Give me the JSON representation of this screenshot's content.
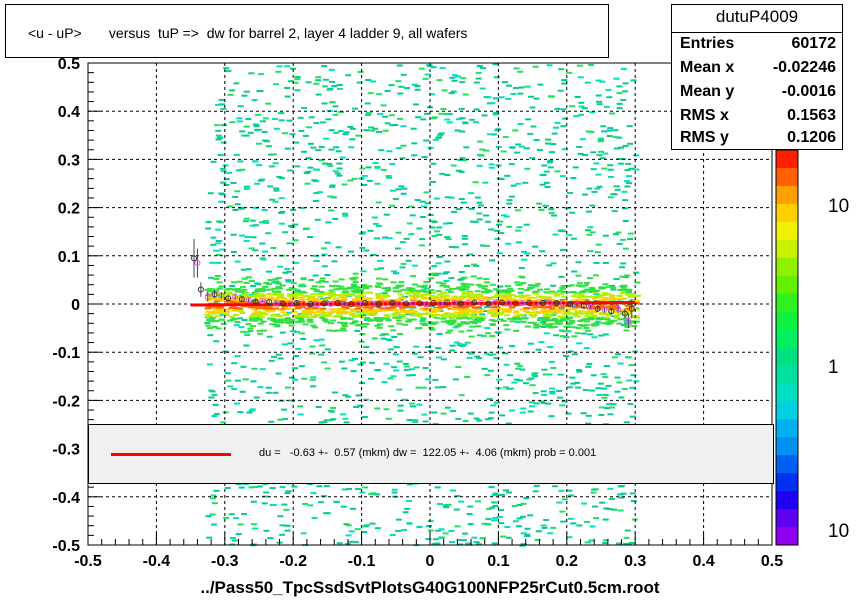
{
  "header": {
    "title": "<u - uP>       versus  tuP =>  dw for barrel 2, layer 4 ladder 9, all wafers"
  },
  "stats": {
    "name": "dutuP4009",
    "rows": [
      {
        "label": "Entries",
        "value": "60172"
      },
      {
        "label": "Mean x",
        "value": "-0.02246"
      },
      {
        "label": "Mean y",
        "value": "-0.0016"
      },
      {
        "label": "RMS x",
        "value": "0.1563"
      },
      {
        "label": "RMS y",
        "value": "0.1206"
      }
    ]
  },
  "fit": {
    "text": "du =   -0.63 +-  0.57 (mkm) dw =  122.05 +-  4.06 (mkm) prob = 0.001",
    "line_color": "#ff0000"
  },
  "chart_data": {
    "type": "heatmap",
    "title": "<u - uP>       versus  tuP =>  dw for barrel 2, layer 4 ladder 9, all wafers",
    "xlabel": "../Pass50_TpcSsdSvtPlotsG40G100NFP25rCut0.5cm.root",
    "ylabel": "",
    "xlim": [
      -0.5,
      0.5
    ],
    "ylim": [
      -0.5,
      0.5
    ],
    "x_ticks": [
      "-0.5",
      "-0.4",
      "-0.3",
      "-0.2",
      "-0.1",
      "0",
      "0.1",
      "0.2",
      "0.3",
      "0.4",
      "0.5"
    ],
    "y_ticks": [
      "-0.5",
      "-0.4",
      "-0.3",
      "-0.2",
      "-0.1",
      "0",
      "0.1",
      "0.2",
      "0.3",
      "0.4",
      "0.5"
    ],
    "grid": true,
    "colorbar": {
      "scale": "log",
      "labels": [
        "10",
        "1",
        "10"
      ]
    },
    "band": {
      "x_range": [
        -0.33,
        0.3
      ],
      "core_half_width": 0.012
    },
    "fit_line": {
      "x": [
        -0.35,
        0.3
      ],
      "y": [
        -0.002,
        0.003
      ],
      "color": "#ff0000"
    },
    "profile_points": {
      "x": [
        -0.345,
        -0.34,
        -0.335,
        -0.325,
        -0.315,
        -0.305,
        -0.295,
        -0.285,
        -0.275,
        -0.265,
        -0.255,
        -0.245,
        -0.235,
        -0.225,
        -0.215,
        -0.205,
        -0.195,
        -0.185,
        -0.175,
        -0.165,
        -0.155,
        -0.145,
        -0.135,
        -0.125,
        -0.115,
        -0.105,
        -0.095,
        -0.085,
        -0.075,
        -0.065,
        -0.055,
        -0.045,
        -0.035,
        -0.025,
        -0.015,
        -0.005,
        0.005,
        0.015,
        0.025,
        0.035,
        0.045,
        0.055,
        0.065,
        0.075,
        0.085,
        0.095,
        0.105,
        0.115,
        0.125,
        0.135,
        0.145,
        0.155,
        0.165,
        0.175,
        0.185,
        0.195,
        0.205,
        0.215,
        0.225,
        0.235,
        0.245,
        0.255,
        0.265,
        0.275,
        0.285,
        0.29,
        0.295
      ],
      "y": [
        0.095,
        0.085,
        0.03,
        0.015,
        0.02,
        0.018,
        0.012,
        0.015,
        0.01,
        0.008,
        0.005,
        0.006,
        0.004,
        0.002,
        0.001,
        0.0,
        0.002,
        0.001,
        0.0,
        -0.001,
        0.001,
        0.0,
        0.002,
        0.001,
        0.0,
        0.001,
        0.002,
        0.001,
        0.0,
        0.001,
        0.002,
        0.0,
        0.001,
        0.002,
        0.001,
        0.0,
        0.002,
        0.001,
        0.003,
        0.002,
        0.001,
        0.002,
        0.003,
        0.002,
        0.001,
        0.002,
        0.003,
        0.002,
        0.001,
        0.002,
        0.002,
        0.001,
        0.002,
        0.003,
        0.002,
        0.001,
        0.0,
        -0.002,
        -0.004,
        -0.006,
        -0.01,
        -0.012,
        -0.015,
        -0.01,
        -0.02,
        -0.035,
        -0.01
      ],
      "err": [
        0.04,
        0.03,
        0.015,
        0.01,
        0.008,
        0.007,
        0.006,
        0.005,
        0.005,
        0.004,
        0.004,
        0.003,
        0.003,
        0.003,
        0.003,
        0.003,
        0.003,
        0.003,
        0.003,
        0.003,
        0.003,
        0.003,
        0.003,
        0.003,
        0.003,
        0.003,
        0.003,
        0.003,
        0.003,
        0.003,
        0.003,
        0.003,
        0.003,
        0.003,
        0.003,
        0.003,
        0.003,
        0.003,
        0.003,
        0.003,
        0.003,
        0.003,
        0.003,
        0.003,
        0.003,
        0.003,
        0.003,
        0.003,
        0.003,
        0.003,
        0.003,
        0.003,
        0.003,
        0.003,
        0.003,
        0.003,
        0.004,
        0.004,
        0.005,
        0.005,
        0.006,
        0.006,
        0.007,
        0.008,
        0.01,
        0.015,
        0.02
      ]
    }
  }
}
